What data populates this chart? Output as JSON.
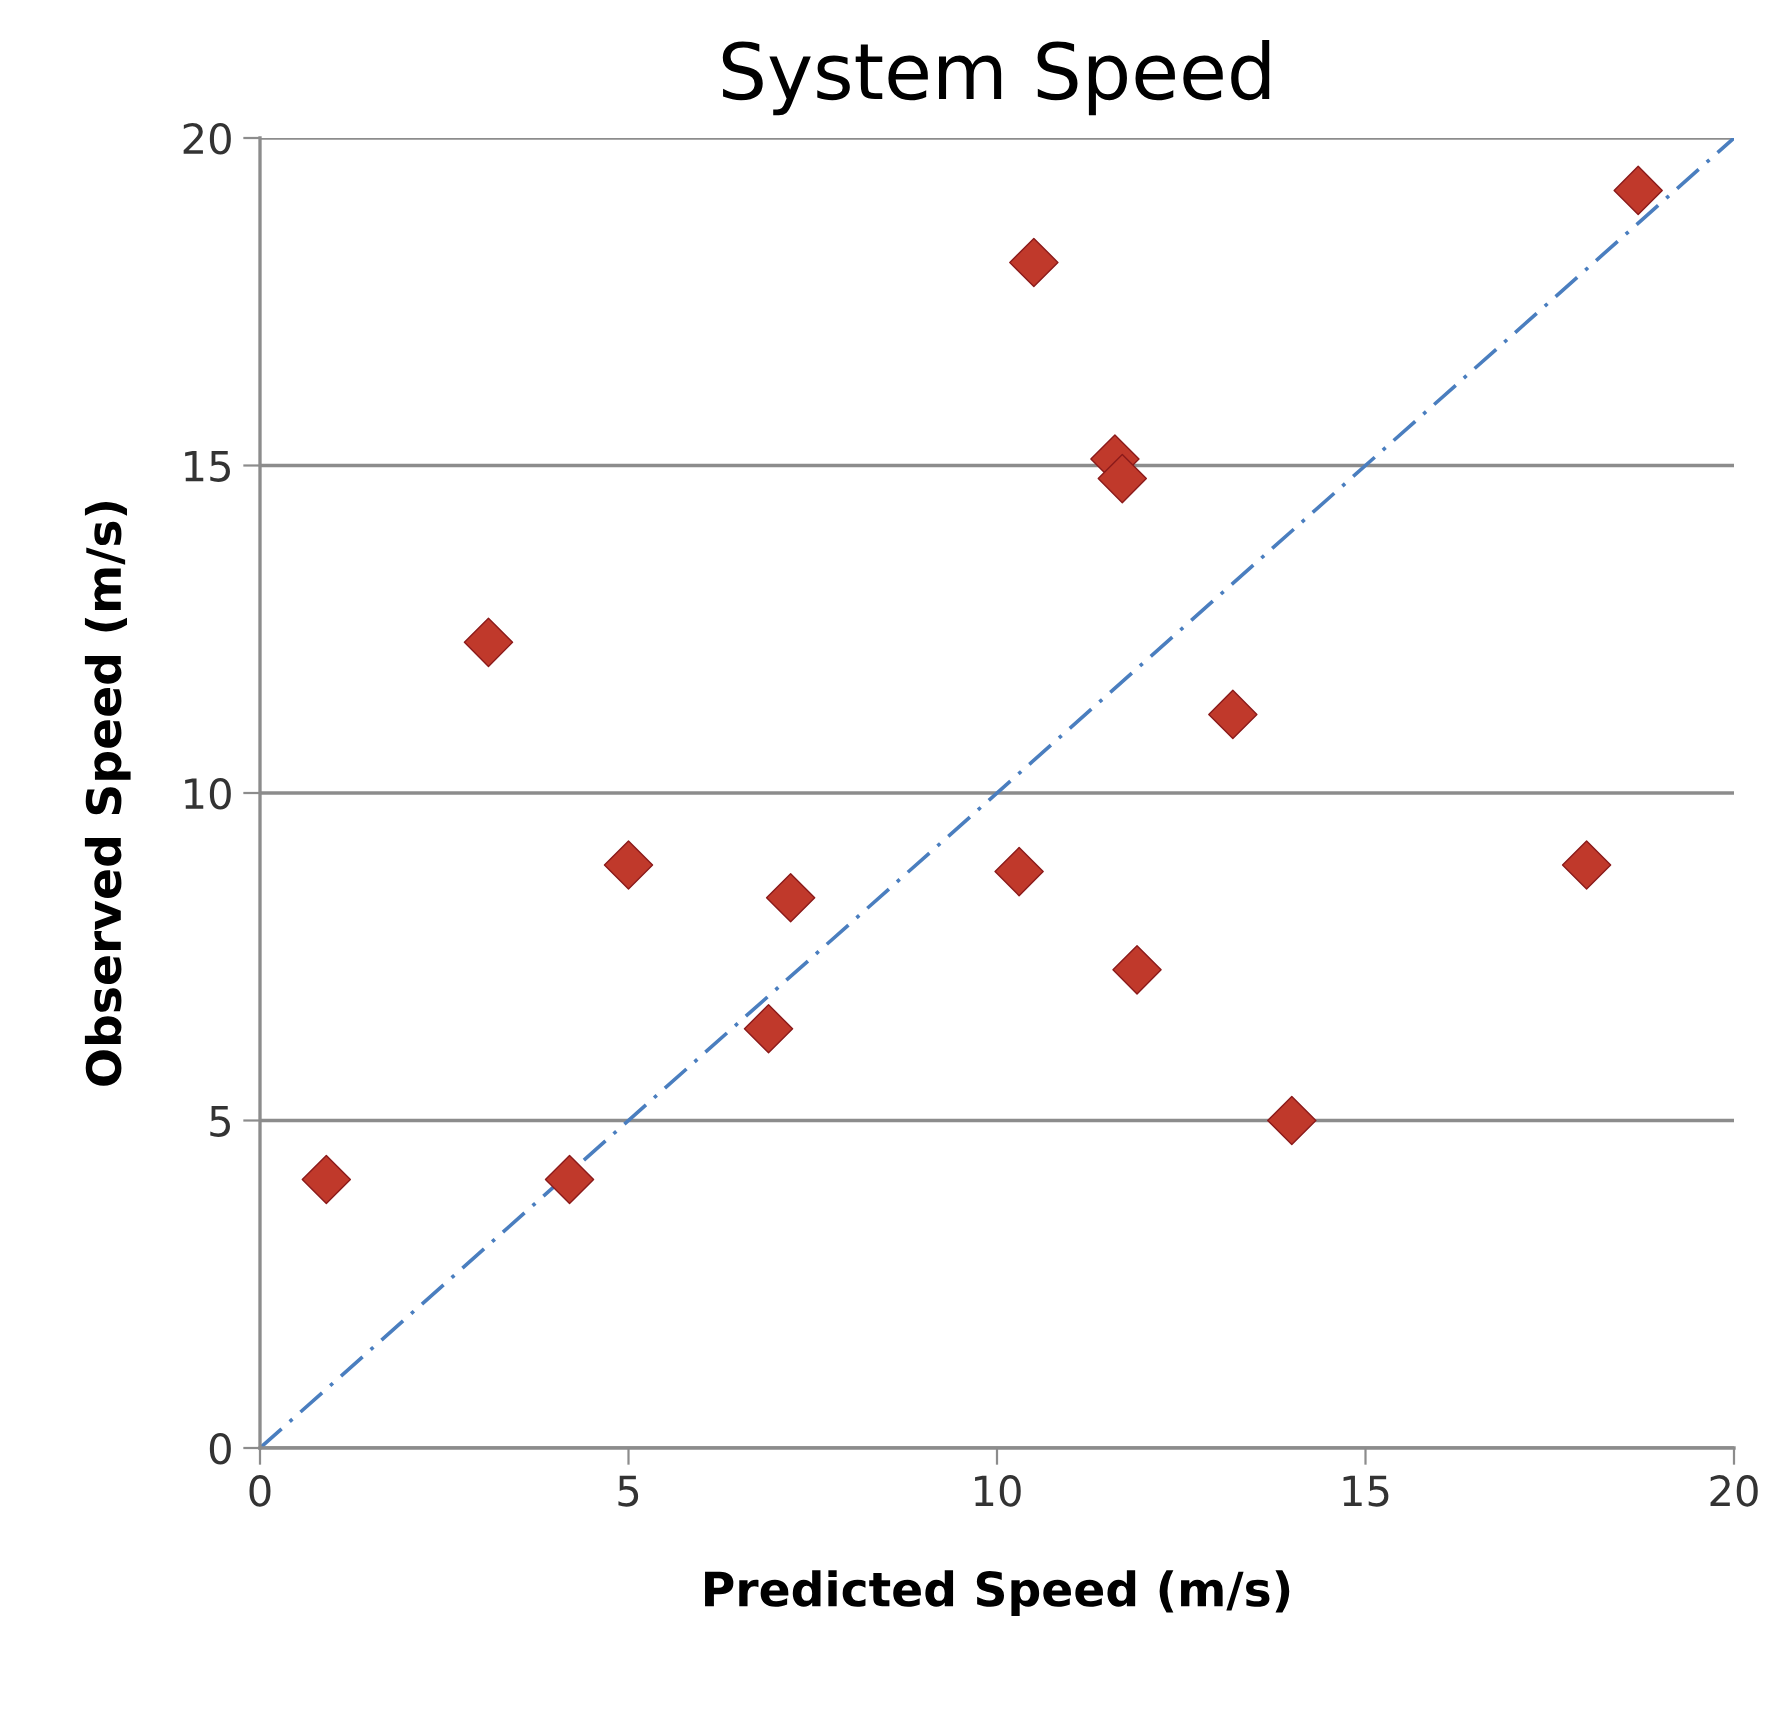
{
  "chart_data": {
    "type": "scatter",
    "title": "System Speed",
    "xlabel": "Predicted Speed (m/s)",
    "ylabel": "Observed Speed (m/s)",
    "xlim": [
      0,
      20
    ],
    "ylim": [
      0,
      20
    ],
    "xticks": [
      0,
      5,
      10,
      15,
      20
    ],
    "yticks": [
      0,
      5,
      10,
      15,
      20
    ],
    "grid": "y",
    "legend": false,
    "series": [
      {
        "color": "#c0392b",
        "marker": "diamond",
        "x": [
          0.9,
          3.1,
          4.2,
          5.0,
          6.9,
          7.2,
          10.3,
          10.5,
          11.6,
          11.7,
          11.9,
          13.2,
          14.0,
          18.0,
          18.7
        ],
        "values": [
          4.1,
          12.3,
          4.1,
          8.9,
          6.4,
          8.4,
          8.8,
          18.1,
          15.1,
          14.8,
          7.3,
          11.2,
          5.0,
          8.9,
          19.2
        ]
      },
      {
        "type": "line",
        "color": "#4a7ebf",
        "line_style": "dashed",
        "marker": "none",
        "x": [
          0,
          20
        ],
        "values": [
          0,
          20
        ]
      }
    ]
  }
}
